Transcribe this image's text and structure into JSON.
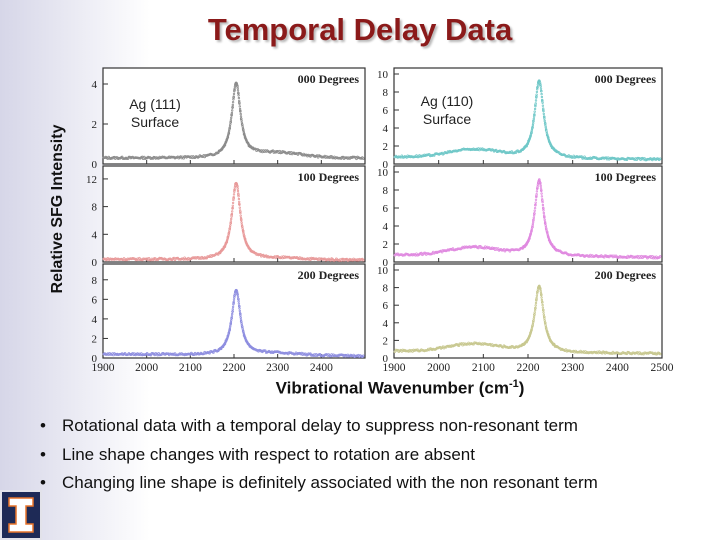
{
  "slide": {
    "title": "Temporal Delay Data",
    "ylabel": "Relative SFG Intensity",
    "xlabel_main": "Vibrational Wavenumber (cm",
    "xlabel_sup": "-1",
    "xlabel_end": ")",
    "panel_labels": {
      "ag111_line1": "Ag (111)",
      "ag111_line2": "Surface",
      "ag110_line1": "Ag (110)",
      "ag110_line2": "Surface"
    },
    "bullets": [
      "Rotational data with a temporal delay to suppress non-resonant term",
      "Line shape changes with respect to rotation are absent",
      "Changing line shape is definitely associated with the non resonant term"
    ],
    "bullet_symbol": "•"
  },
  "chart_data": [
    {
      "type": "scatter",
      "surface": "Ag (111)",
      "title": "000 Degrees",
      "xlim": [
        1900,
        2500
      ],
      "ylim": [
        0,
        4.5
      ],
      "yticks": [
        "0",
        "2",
        "4"
      ],
      "xticks": [],
      "color": "#8c8c8c",
      "peak_center": 2205,
      "peak_height": 3.7,
      "peak_width": 12,
      "baseline_left": 0.3,
      "baseline_right": 0.3,
      "hump_center": 2300,
      "hump_height": 0.25
    },
    {
      "type": "scatter",
      "surface": "Ag (111)",
      "title": "100 Degrees",
      "xlim": [
        1900,
        2500
      ],
      "ylim": [
        0,
        13
      ],
      "yticks": [
        "0",
        "4",
        "8",
        "12"
      ],
      "xticks": [],
      "color": "#e89a9a",
      "peak_center": 2205,
      "peak_height": 11.0,
      "peak_width": 12,
      "baseline_left": 0.4,
      "baseline_right": 0.3,
      "hump_center": 2300,
      "hump_height": 0.2
    },
    {
      "type": "scatter",
      "surface": "Ag (111)",
      "title": "200 Degrees",
      "xlim": [
        1900,
        2500
      ],
      "ylim": [
        0,
        9
      ],
      "yticks": [
        "0",
        "2",
        "4",
        "6",
        "8"
      ],
      "xticks": [
        "1900",
        "2000",
        "2100",
        "2200",
        "2300",
        "2400"
      ],
      "color": "#8f8fe0",
      "peak_center": 2205,
      "peak_height": 6.6,
      "peak_width": 12,
      "baseline_left": 0.4,
      "baseline_right": 0.2,
      "hump_center": 2300,
      "hump_height": 0.2
    },
    {
      "type": "scatter",
      "surface": "Ag (110)",
      "title": "000 Degrees",
      "xlim": [
        1900,
        2500
      ],
      "ylim": [
        0,
        10
      ],
      "yticks": [
        "0",
        "2",
        "4",
        "6",
        "8",
        "10"
      ],
      "xticks": [],
      "color": "#70c8c8",
      "peak_center": 2225,
      "peak_height": 8.6,
      "peak_width": 12,
      "baseline_left": 0.8,
      "baseline_right": 0.5,
      "hump_center": 2080,
      "hump_height": 0.9
    },
    {
      "type": "scatter",
      "surface": "Ag (110)",
      "title": "100 Degrees",
      "xlim": [
        1900,
        2500
      ],
      "ylim": [
        0,
        10
      ],
      "yticks": [
        "0",
        "2",
        "4",
        "6",
        "8",
        "10"
      ],
      "xticks": [],
      "color": "#e08ae0",
      "peak_center": 2225,
      "peak_height": 8.4,
      "peak_width": 12,
      "baseline_left": 0.8,
      "baseline_right": 0.5,
      "hump_center": 2080,
      "hump_height": 0.9
    },
    {
      "type": "scatter",
      "surface": "Ag (110)",
      "title": "200 Degrees",
      "xlim": [
        1900,
        2500
      ],
      "ylim": [
        0,
        10
      ],
      "yticks": [
        "0",
        "2",
        "4",
        "6",
        "8",
        "10"
      ],
      "xticks": [
        "1900",
        "2000",
        "2100",
        "2200",
        "2300",
        "2400",
        "2500"
      ],
      "color": "#c8c890",
      "peak_center": 2225,
      "peak_height": 7.5,
      "peak_width": 12,
      "baseline_left": 0.8,
      "baseline_right": 0.5,
      "hump_center": 2080,
      "hump_height": 0.9
    }
  ]
}
